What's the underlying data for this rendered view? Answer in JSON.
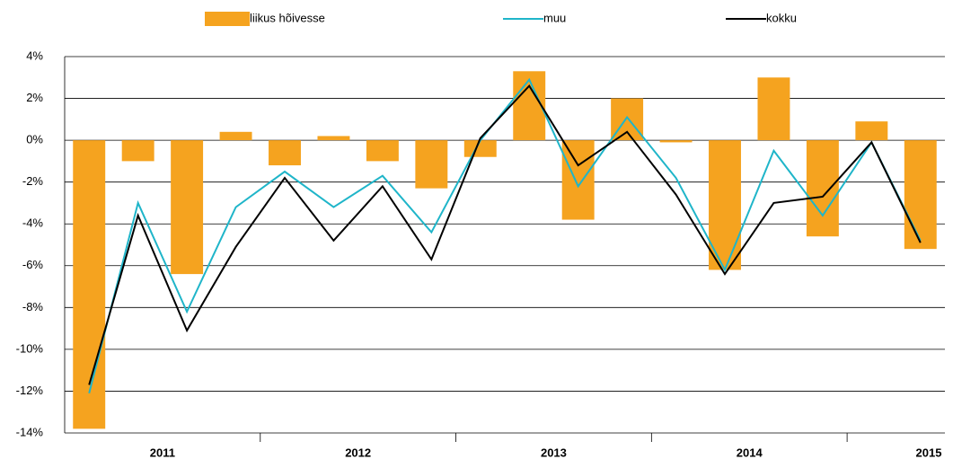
{
  "chart_data": {
    "type": "bar-line",
    "categories": [
      null,
      null,
      null,
      null,
      null,
      null,
      null,
      null,
      null,
      null,
      null,
      null,
      null,
      null,
      null,
      null,
      null,
      null
    ],
    "year_labels": [
      "2011",
      "2012",
      "2013",
      "2014",
      "2015"
    ],
    "series": [
      {
        "name": "liikus hõivesse",
        "type": "bar",
        "color": "#f5a31f",
        "values": [
          -13.8,
          -1.0,
          -6.4,
          0.4,
          -1.2,
          0.2,
          -1.0,
          -2.3,
          -0.8,
          3.3,
          -3.8,
          2.0,
          -0.1,
          -6.2,
          3.0,
          -4.6,
          0.9,
          -5.2
        ]
      },
      {
        "name": "muu",
        "type": "line",
        "color": "#1fb5c9",
        "values": [
          -12.1,
          -3.0,
          -8.2,
          -3.2,
          -1.5,
          -3.2,
          -1.7,
          -4.4,
          0.0,
          2.9,
          -2.2,
          1.1,
          -1.8,
          -6.2,
          -0.5,
          -3.6,
          -0.1,
          -4.8
        ]
      },
      {
        "name": "kokku",
        "type": "line",
        "color": "#000000",
        "values": [
          -11.7,
          -3.6,
          -9.1,
          -5.1,
          -1.8,
          -4.8,
          -2.2,
          -5.7,
          0.1,
          2.6,
          -1.2,
          0.4,
          -2.6,
          -6.4,
          -3.0,
          -2.7,
          -0.1,
          -4.9
        ]
      }
    ],
    "ylim": [
      -14,
      4
    ],
    "yticks": [
      {
        "value": -14,
        "label": "-14%"
      },
      {
        "value": -12,
        "label": "-12%"
      },
      {
        "value": -10,
        "label": "-10%"
      },
      {
        "value": -8,
        "label": "-8%"
      },
      {
        "value": -6,
        "label": "-6%"
      },
      {
        "value": -4,
        "label": "-4%"
      },
      {
        "value": -2,
        "label": "-2%"
      },
      {
        "value": 0,
        "label": "0%"
      },
      {
        "value": 2,
        "label": "2%"
      },
      {
        "value": 4,
        "label": "4%"
      }
    ],
    "grid": true
  }
}
